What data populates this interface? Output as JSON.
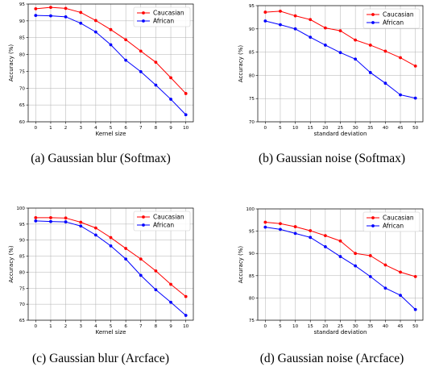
{
  "chart_data": [
    {
      "type": "line",
      "caption": "(a)  Gaussian blur (Softmax)",
      "xlabel": "Kernel size",
      "ylabel": "Accuracy (%)",
      "x": [
        0,
        1,
        2,
        3,
        4,
        5,
        6,
        7,
        8,
        9,
        10
      ],
      "xticks": [
        "0",
        "1",
        "2",
        "3",
        "4",
        "5",
        "6",
        "7",
        "8",
        "9",
        "10"
      ],
      "yticks": [
        "60",
        "65",
        "70",
        "75",
        "80",
        "85",
        "90",
        "95"
      ],
      "xlim": [
        -0.5,
        10.5
      ],
      "ylim": [
        60,
        95
      ],
      "grid": true,
      "legend_position": "top-right",
      "series": [
        {
          "name": "Caucasian",
          "color": "#ff0000",
          "values": [
            93.6,
            94.0,
            93.7,
            92.5,
            90.1,
            87.4,
            84.4,
            81.0,
            77.7,
            73.1,
            68.4
          ]
        },
        {
          "name": "African",
          "color": "#0000ff",
          "values": [
            91.6,
            91.5,
            91.2,
            89.3,
            86.7,
            82.9,
            78.3,
            74.9,
            70.9,
            66.7,
            62.1
          ]
        }
      ]
    },
    {
      "type": "line",
      "caption": "(b)  Gaussian noise (Softmax)",
      "xlabel": "standard deviation",
      "ylabel": "Accuracy (%)",
      "x": [
        0,
        5,
        10,
        15,
        20,
        25,
        30,
        35,
        40,
        45,
        50
      ],
      "xticks": [
        "0",
        "5",
        "10",
        "15",
        "20",
        "25",
        "30",
        "35",
        "40",
        "45",
        "50"
      ],
      "yticks": [
        "70",
        "75",
        "80",
        "85",
        "90",
        "95"
      ],
      "xlim": [
        -2.5,
        52.5
      ],
      "ylim": [
        70,
        95
      ],
      "grid": true,
      "legend_position": "top-right",
      "series": [
        {
          "name": "Caucasian",
          "color": "#ff0000",
          "values": [
            93.6,
            93.8,
            92.8,
            92.0,
            90.2,
            89.6,
            87.6,
            86.5,
            85.2,
            83.8,
            82.0
          ]
        },
        {
          "name": "African",
          "color": "#0000ff",
          "values": [
            91.7,
            90.9,
            90.0,
            88.2,
            86.5,
            84.9,
            83.5,
            80.6,
            78.3,
            75.8,
            75.1
          ]
        }
      ]
    },
    {
      "type": "line",
      "caption": "(c)  Gaussian blur (Arcface)",
      "xlabel": "Kernel size",
      "ylabel": "Accuracy (%)",
      "x": [
        0,
        1,
        2,
        3,
        4,
        5,
        6,
        7,
        8,
        9,
        10
      ],
      "xticks": [
        "0",
        "1",
        "2",
        "3",
        "4",
        "5",
        "6",
        "7",
        "8",
        "9",
        "10"
      ],
      "yticks": [
        "65",
        "70",
        "75",
        "80",
        "85",
        "90",
        "95",
        "100"
      ],
      "xlim": [
        -0.5,
        10.5
      ],
      "ylim": [
        65,
        100
      ],
      "grid": true,
      "legend_position": "top-right",
      "series": [
        {
          "name": "Caucasian",
          "color": "#ff0000",
          "values": [
            97.0,
            97.0,
            96.9,
            95.6,
            93.8,
            90.8,
            87.4,
            84.1,
            80.4,
            76.2,
            72.4
          ]
        },
        {
          "name": "African",
          "color": "#0000ff",
          "values": [
            96.0,
            95.8,
            95.7,
            94.4,
            91.6,
            88.2,
            84.1,
            79.0,
            74.5,
            70.6,
            66.5
          ]
        }
      ]
    },
    {
      "type": "line",
      "caption": "(d)  Gaussian noise (Arcface)",
      "xlabel": "standard deviation",
      "ylabel": "Accuracy (%)",
      "x": [
        0,
        5,
        10,
        15,
        20,
        25,
        30,
        35,
        40,
        45,
        50
      ],
      "xticks": [
        "0",
        "5",
        "10",
        "15",
        "20",
        "25",
        "30",
        "35",
        "40",
        "45",
        "50"
      ],
      "yticks": [
        "75",
        "80",
        "85",
        "90",
        "95",
        "100"
      ],
      "xlim": [
        -2.5,
        52.5
      ],
      "ylim": [
        75,
        100
      ],
      "grid": true,
      "legend_position": "top-right",
      "series": [
        {
          "name": "Caucasian",
          "color": "#ff0000",
          "values": [
            97.0,
            96.7,
            96.0,
            95.1,
            94.0,
            92.8,
            90.0,
            89.5,
            87.4,
            85.8,
            84.8
          ]
        },
        {
          "name": "African",
          "color": "#0000ff",
          "values": [
            95.9,
            95.4,
            94.5,
            93.6,
            91.5,
            89.3,
            87.2,
            84.8,
            82.2,
            80.6,
            77.4
          ]
        }
      ]
    }
  ]
}
